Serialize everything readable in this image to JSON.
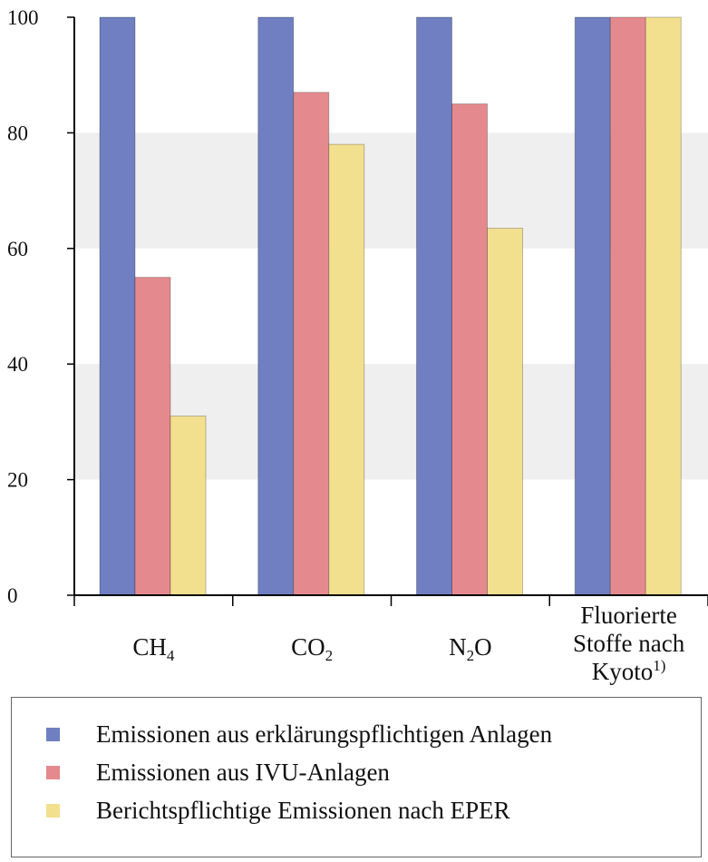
{
  "chart_data": {
    "type": "bar",
    "categories": [
      {
        "lines": [
          {
            "base": "CH",
            "sub": "4",
            "tail": ""
          }
        ]
      },
      {
        "lines": [
          {
            "base": "CO",
            "sub": "2",
            "tail": ""
          }
        ]
      },
      {
        "lines": [
          {
            "base": "N",
            "sub": "2",
            "tail": "O"
          }
        ]
      },
      {
        "lines": [
          {
            "base": "Fluorierte"
          },
          {
            "base": "Stoffe nach"
          },
          {
            "base": "Kyoto",
            "sup": "1)"
          }
        ]
      }
    ],
    "category_names": [
      "CH4",
      "CO2",
      "N2O",
      "Fluorierte Stoffe nach Kyoto 1)"
    ],
    "series": [
      {
        "name": "Emissionen aus erklärungspflichtigen Anlagen",
        "color": "#6f7fc2",
        "values": [
          100,
          100,
          100,
          100
        ]
      },
      {
        "name": "Emissionen aus IVU-Anlagen",
        "color": "#e48a8e",
        "values": [
          55,
          87,
          85,
          100
        ]
      },
      {
        "name": "Berichtspflichtige Emissionen nach EPER",
        "color": "#f3e08e",
        "values": [
          31,
          78,
          63.5,
          100
        ]
      }
    ],
    "ylim": [
      0,
      100
    ],
    "yticks": [
      0,
      20,
      40,
      60,
      80,
      100
    ],
    "grid": "alternating horizontal bands",
    "band_color": "#efefef",
    "legend_position": "bottom",
    "title": "",
    "xlabel": "",
    "ylabel": ""
  }
}
